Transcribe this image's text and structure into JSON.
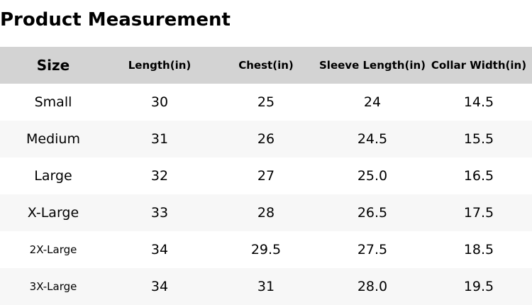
{
  "title": "Product Measurement",
  "headers": [
    "Size",
    "Length(in)",
    "Chest(in)",
    "Sleeve Length(in)",
    "Collar Width(in)"
  ],
  "rows": [
    [
      "Small",
      "30",
      "25",
      "24",
      "14.5"
    ],
    [
      "Medium",
      "31",
      "26",
      "24.5",
      "15.5"
    ],
    [
      "Large",
      "32",
      "27",
      "25.0",
      "16.5"
    ],
    [
      "X-Large",
      "33",
      "28",
      "26.5",
      "17.5"
    ],
    [
      "2X-Large",
      "34",
      "29.5",
      "27.5",
      "18.5"
    ],
    [
      "3X-Large",
      "34",
      "31",
      "28.0",
      "19.5"
    ]
  ],
  "colors": {
    "header_bg": "#d3d3d3",
    "alt_row_bg": "#f7f7f7"
  }
}
